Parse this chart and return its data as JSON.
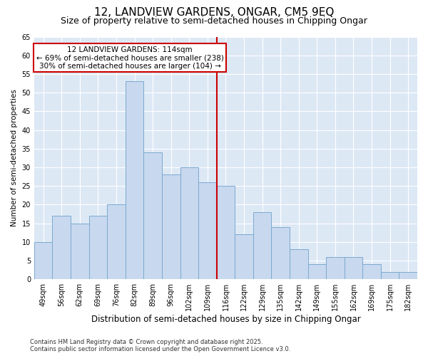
{
  "title": "12, LANDVIEW GARDENS, ONGAR, CM5 9EQ",
  "subtitle": "Size of property relative to semi-detached houses in Chipping Ongar",
  "xlabel": "Distribution of semi-detached houses by size in Chipping Ongar",
  "ylabel": "Number of semi-detached properties",
  "categories": [
    "49sqm",
    "56sqm",
    "62sqm",
    "69sqm",
    "76sqm",
    "82sqm",
    "89sqm",
    "96sqm",
    "102sqm",
    "109sqm",
    "116sqm",
    "122sqm",
    "129sqm",
    "135sqm",
    "142sqm",
    "149sqm",
    "155sqm",
    "162sqm",
    "169sqm",
    "175sqm",
    "182sqm"
  ],
  "values": [
    10,
    17,
    15,
    17,
    20,
    53,
    34,
    28,
    30,
    26,
    25,
    12,
    18,
    14,
    8,
    4,
    6,
    6,
    4,
    2,
    2
  ],
  "bar_color": "#c8d8ee",
  "bar_edge_color": "#7aaad0",
  "highlight_label": "12 LANDVIEW GARDENS: 114sqm",
  "smaller_text": "← 69% of semi-detached houses are smaller (238)",
  "larger_text": "30% of semi-detached houses are larger (104) →",
  "annotation_box_color": "#cc0000",
  "vline_color": "#cc0000",
  "vline_x_index": 9,
  "bg_color": "#ffffff",
  "plot_bg_color": "#dde8f5",
  "ylim": [
    0,
    65
  ],
  "yticks": [
    0,
    5,
    10,
    15,
    20,
    25,
    30,
    35,
    40,
    45,
    50,
    55,
    60,
    65
  ],
  "footer": "Contains HM Land Registry data © Crown copyright and database right 2025.\nContains public sector information licensed under the Open Government Licence v3.0.",
  "title_fontsize": 11,
  "subtitle_fontsize": 9,
  "xlabel_fontsize": 8.5,
  "ylabel_fontsize": 7.5,
  "tick_fontsize": 7,
  "footer_fontsize": 6,
  "ann_fontsize": 7.5
}
